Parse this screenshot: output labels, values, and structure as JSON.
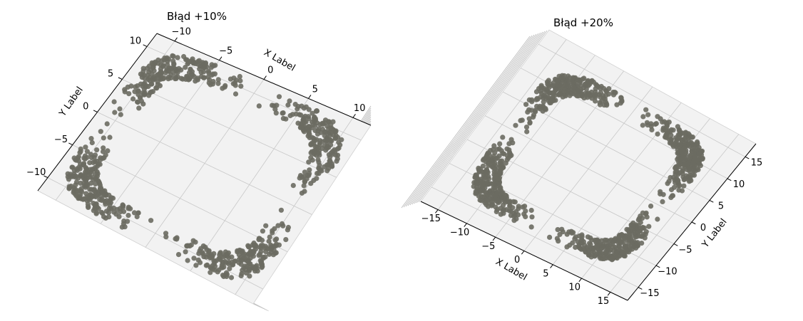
{
  "chart_data": [
    {
      "type": "scatter",
      "projection": "3d",
      "title": "Błąd +10%",
      "xlabel": "X Label",
      "ylabel": "Y Label",
      "zlabel": "",
      "xlim": [
        -12,
        12
      ],
      "ylim": [
        -12,
        12
      ],
      "x_ticks": [
        -10,
        -5,
        0,
        5,
        10
      ],
      "y_ticks": [
        -10,
        -5,
        0,
        5,
        10
      ],
      "x_tick_labels": [
        "−10",
        "−5",
        "0",
        "5",
        "10"
      ],
      "y_tick_labels": [
        "−10",
        "−5",
        "0",
        "5",
        "10"
      ],
      "marker_color": "#6b6b62",
      "pane_color": "#f2f2f2",
      "grid": true,
      "series": [
        {
          "shape": "rounded-square-ring",
          "center": [
            0,
            0
          ],
          "half_width": 10.0,
          "ring_thickness": 1.6,
          "points": 900
        }
      ]
    },
    {
      "type": "scatter",
      "projection": "3d",
      "title": "Błąd +20%",
      "xlabel": "X Label",
      "ylabel": "Y Label",
      "zlabel": "",
      "xlim": [
        -18,
        18
      ],
      "ylim": [
        -18,
        18
      ],
      "x_ticks": [
        -15,
        -10,
        -5,
        0,
        5,
        10,
        15
      ],
      "y_ticks": [
        -15,
        -10,
        -5,
        0,
        5,
        10,
        15
      ],
      "x_tick_labels": [
        "−15",
        "−10",
        "−5",
        "0",
        "5",
        "10",
        "15"
      ],
      "y_tick_labels": [
        "−15",
        "−10",
        "−5",
        "0",
        "5",
        "10",
        "15"
      ],
      "marker_color": "#6b6b62",
      "pane_color": "#f2f2f2",
      "grid": true,
      "series": [
        {
          "shape": "rounded-square-ring",
          "center": [
            0,
            0
          ],
          "half_width": 12.5,
          "ring_thickness": 2.0,
          "points": 1100
        }
      ]
    }
  ]
}
